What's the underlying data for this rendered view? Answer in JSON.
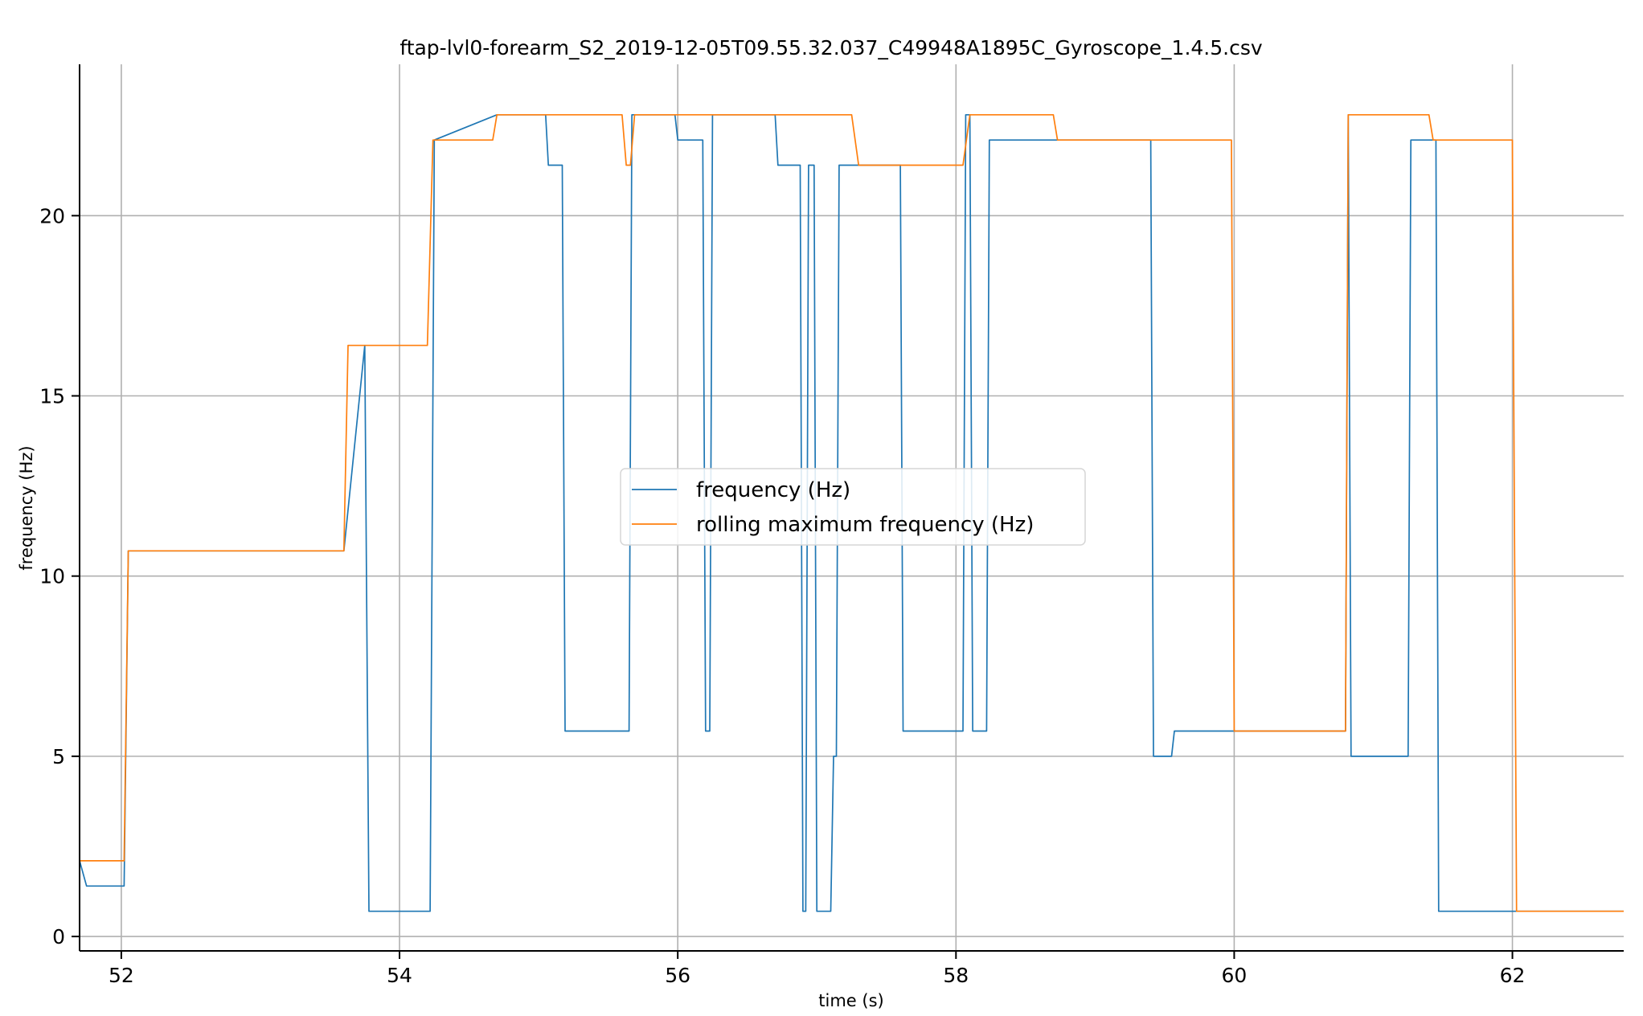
{
  "chart_data": {
    "type": "line",
    "title": "ftap-lvl0-forearm_S2_2019-12-05T09.55.32.037_C49948A1895C_Gyroscope_1.4.5.csv",
    "xlabel": "time (s)",
    "ylabel": "frequency (Hz)",
    "xlim": [
      51.7,
      62.8
    ],
    "ylim": [
      -0.4,
      24.2
    ],
    "xticks": [
      52,
      54,
      56,
      58,
      60,
      62
    ],
    "yticks": [
      0,
      5,
      10,
      15,
      20
    ],
    "grid": true,
    "legend_position": "center",
    "series": [
      {
        "name": "frequency (Hz)",
        "color": "#1f77b4",
        "x": [
          51.7,
          51.75,
          52.02,
          52.05,
          53.6,
          53.75,
          53.78,
          54.22,
          54.25,
          54.7,
          55.05,
          55.07,
          55.17,
          55.19,
          55.65,
          55.67,
          55.98,
          56.0,
          56.18,
          56.2,
          56.23,
          56.25,
          56.7,
          56.72,
          56.88,
          56.9,
          56.92,
          56.94,
          56.98,
          57.0,
          57.02,
          57.04,
          57.1,
          57.12,
          57.14,
          57.16,
          57.6,
          57.62,
          58.05,
          58.07,
          58.1,
          58.12,
          58.22,
          58.24,
          58.7,
          59.4,
          59.42,
          59.55,
          59.57,
          60.0,
          60.8,
          60.82,
          60.84,
          61.25,
          61.27,
          61.4,
          61.45,
          61.47,
          62.0,
          62.03,
          62.8
        ],
        "y": [
          2.1,
          1.4,
          1.4,
          10.7,
          10.7,
          16.4,
          0.7,
          0.7,
          22.1,
          22.8,
          22.8,
          21.4,
          21.4,
          5.7,
          5.7,
          22.8,
          22.8,
          22.1,
          22.1,
          5.7,
          5.7,
          22.8,
          22.8,
          21.4,
          21.4,
          0.7,
          0.7,
          21.4,
          21.4,
          0.7,
          0.7,
          0.7,
          0.7,
          5.0,
          5.0,
          21.4,
          21.4,
          5.7,
          5.7,
          22.8,
          22.8,
          5.7,
          5.7,
          22.1,
          22.1,
          22.1,
          5.0,
          5.0,
          5.7,
          5.7,
          5.7,
          22.8,
          5.0,
          5.0,
          22.1,
          22.1,
          22.1,
          0.7,
          0.7,
          0.7,
          0.7
        ]
      },
      {
        "name": "rolling maximum frequency (Hz)",
        "color": "#ff7f0e",
        "x": [
          51.7,
          52.02,
          52.05,
          53.6,
          53.63,
          54.2,
          54.24,
          54.67,
          54.7,
          55.6,
          55.63,
          55.66,
          55.69,
          57.25,
          57.3,
          58.05,
          58.1,
          58.7,
          58.73,
          59.98,
          60.0,
          60.8,
          60.82,
          61.4,
          61.43,
          62.0,
          62.03,
          62.8
        ],
        "y": [
          2.1,
          2.1,
          10.7,
          10.7,
          16.4,
          16.4,
          22.1,
          22.1,
          22.8,
          22.8,
          21.4,
          21.4,
          22.8,
          22.8,
          21.4,
          21.4,
          22.8,
          22.8,
          22.1,
          22.1,
          5.7,
          5.7,
          22.8,
          22.8,
          22.1,
          22.1,
          0.7,
          0.7
        ]
      }
    ]
  }
}
